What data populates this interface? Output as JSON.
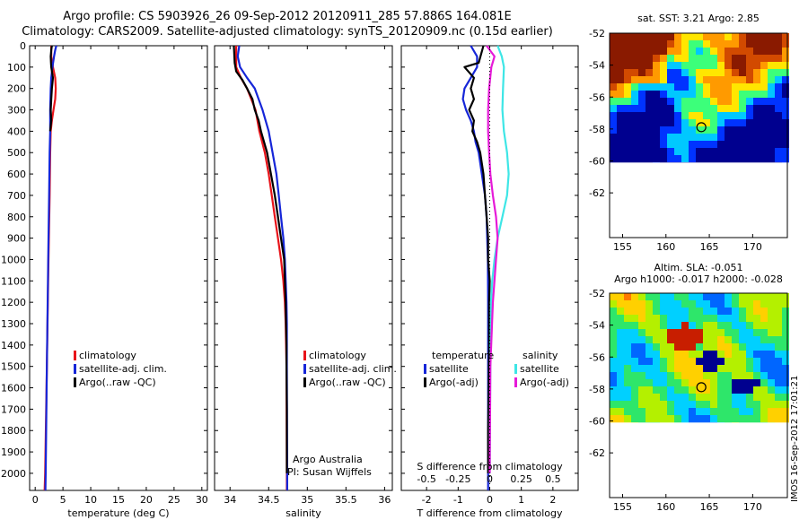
{
  "header": {
    "line1": "Argo profile: CS 5903926_26 09-Sep-2012 20120911_285 57.886S 164.081E",
    "line2": "Climatology: CARS2009. Satellite-adjusted climatology: synTS_20120909.nc (0.15d earlier)"
  },
  "colors": {
    "climatology": "#e8141a",
    "satellite": "#1626d8",
    "argo": "#000000",
    "satellite_salinity": "#3ee6e6",
    "argo_salinity_diff": "#e61ad8"
  },
  "panels": {
    "temperature": {
      "xlabel": "temperature (deg C)"
    },
    "salinity": {
      "xlabel": "salinity",
      "note1": "Argo Australia",
      "note2": "PI: Susan Wijffels"
    },
    "difference": {
      "xlabel": "T difference from climatology",
      "top_label": "S difference from climatology"
    }
  },
  "legend": {
    "climatology": "climatology",
    "satellite_adj": "satellite-adj. clim.",
    "argo_raw": "Argo(..raw -QC)",
    "temperature_head": "temperature",
    "salinity_head": "salinity",
    "satellite": "satellite",
    "argo_adj": "Argo(-adj)"
  },
  "maps": {
    "sst_title": "sat. SST: 3.21  Argo: 2.85",
    "sla_title1": "Altim. SLA: -0.051",
    "sla_title2": "Argo h1000: -0.017 h2000: -0.028",
    "lat_ticks": [
      "-52",
      "-54",
      "-56",
      "-58",
      "-60",
      "-62"
    ],
    "lon_ticks": [
      "155",
      "160",
      "165",
      "170"
    ],
    "float_lon": 164.081,
    "float_lat": -57.886
  },
  "stamp": "IMOS 16-Sep-2012 17:01:21",
  "chart_data": [
    {
      "type": "line",
      "panel": "temperature",
      "xlabel": "temperature (deg C)",
      "ylim": [
        2080,
        0
      ],
      "xlim": [
        -1,
        31
      ],
      "x_ticks": [
        0,
        5,
        10,
        15,
        20,
        25,
        30
      ],
      "y_ticks": [
        0,
        100,
        200,
        300,
        400,
        500,
        600,
        700,
        800,
        900,
        1000,
        1100,
        1200,
        1300,
        1400,
        1500,
        1600,
        1700,
        1800,
        1900,
        2000
      ],
      "series": [
        {
          "name": "climatology",
          "depth": [
            0,
            50,
            100,
            150,
            200,
            250,
            300,
            350,
            400,
            500,
            700,
            1000,
            1500,
            2000,
            2080
          ],
          "values": [
            2.9,
            2.9,
            3.2,
            3.6,
            3.7,
            3.6,
            3.3,
            3.0,
            2.8,
            2.7,
            2.6,
            2.4,
            2.1,
            1.8,
            1.7
          ]
        },
        {
          "name": "satellite-adj. clim.",
          "depth": [
            0,
            20,
            50,
            100,
            150,
            200,
            300,
            400,
            500,
            700,
            1000,
            1500,
            2000,
            2080
          ],
          "values": [
            3.8,
            3.6,
            3.4,
            3.1,
            2.9,
            2.8,
            2.7,
            2.7,
            2.6,
            2.5,
            2.35,
            2.1,
            1.9,
            1.85
          ]
        },
        {
          "name": "Argo(..raw -QC)",
          "depth": [
            0,
            20,
            50,
            80,
            100,
            150,
            200,
            250,
            300,
            350,
            400
          ],
          "values": [
            3.0,
            2.9,
            2.8,
            2.85,
            2.9,
            3.2,
            3.0,
            2.9,
            2.8,
            2.9,
            2.7
          ]
        }
      ]
    },
    {
      "type": "line",
      "panel": "salinity",
      "xlabel": "salinity",
      "ylim": [
        2080,
        0
      ],
      "xlim": [
        33.8,
        36.1
      ],
      "x_ticks": [
        34,
        34.5,
        35,
        35.5,
        36
      ],
      "series": [
        {
          "name": "climatology",
          "depth": [
            0,
            100,
            150,
            200,
            300,
            400,
            500,
            600,
            700,
            800,
            900,
            1000,
            1100,
            1200,
            1300,
            1500,
            2000,
            2080
          ],
          "values": [
            34.08,
            34.08,
            34.14,
            34.22,
            34.33,
            34.38,
            34.45,
            34.5,
            34.54,
            34.58,
            34.62,
            34.66,
            34.69,
            34.71,
            34.72,
            34.73,
            34.735,
            34.735
          ]
        },
        {
          "name": "satellite-adj. clim.",
          "depth": [
            0,
            50,
            100,
            150,
            200,
            300,
            400,
            500,
            600,
            700,
            800,
            900,
            1000,
            1100,
            1200,
            1300,
            1500,
            2000,
            2080
          ],
          "values": [
            34.12,
            34.1,
            34.13,
            34.22,
            34.32,
            34.42,
            34.5,
            34.55,
            34.6,
            34.63,
            34.66,
            34.69,
            34.71,
            34.72,
            34.73,
            34.735,
            34.735,
            34.74,
            34.74
          ]
        },
        {
          "name": "Argo(..raw -QC)",
          "depth": [
            0,
            80,
            120,
            160,
            200,
            250,
            300,
            350,
            400,
            450,
            500,
            600,
            700,
            800,
            900,
            1000,
            1100,
            1200,
            1300,
            1400,
            1500,
            1700,
            1900,
            2000
          ],
          "values": [
            34.05,
            34.06,
            34.08,
            34.16,
            34.22,
            34.29,
            34.32,
            34.37,
            34.4,
            34.44,
            34.48,
            34.53,
            34.58,
            34.62,
            34.66,
            34.7,
            34.71,
            34.72,
            34.725,
            34.73,
            34.73,
            34.735,
            34.735,
            34.735
          ]
        }
      ]
    },
    {
      "type": "line",
      "panel": "difference",
      "xlabel": "T difference from climatology",
      "x2label": "S difference from climatology",
      "ylim": [
        2080,
        0
      ],
      "xlim": [
        -2.8,
        2.8
      ],
      "x_ticks": [
        -2,
        -1,
        0,
        1,
        2
      ],
      "x2_ticks": [
        "-0.5",
        "-0.25",
        "0",
        "0.25",
        "0.5"
      ],
      "series": [
        {
          "name": "temperature satellite",
          "depth": [
            0,
            50,
            100,
            150,
            200,
            250,
            300,
            350,
            400,
            450,
            500,
            600,
            700,
            800,
            900,
            1000,
            1200,
            1500,
            2000,
            2080
          ],
          "values": [
            -0.6,
            -0.4,
            -0.4,
            -0.6,
            -0.8,
            -0.85,
            -0.75,
            -0.6,
            -0.5,
            -0.45,
            -0.35,
            -0.25,
            -0.15,
            -0.1,
            -0.08,
            -0.06,
            -0.05,
            -0.05,
            -0.05,
            -0.05
          ]
        },
        {
          "name": "temperature Argo(-adj)",
          "depth": [
            0,
            80,
            100,
            150,
            200,
            250,
            300,
            350,
            400,
            450,
            500,
            550,
            600,
            700,
            800,
            900,
            1000,
            1100,
            1200,
            1400,
            1600,
            1800,
            2000
          ],
          "values": [
            -0.2,
            -0.35,
            -0.8,
            -0.5,
            -0.6,
            -0.5,
            -0.65,
            -0.5,
            -0.55,
            -0.4,
            -0.3,
            -0.25,
            -0.2,
            -0.15,
            -0.1,
            -0.05,
            -0.05,
            0.0,
            -0.02,
            -0.02,
            -0.03,
            -0.05,
            -0.05
          ]
        },
        {
          "name": "salinity satellite",
          "depth": [
            0,
            50,
            100,
            200,
            300,
            400,
            500,
            600,
            700,
            800,
            900,
            1000,
            1100,
            1200,
            1500,
            2000
          ],
          "values": [
            0.25,
            0.38,
            0.45,
            0.42,
            0.4,
            0.45,
            0.55,
            0.6,
            0.55,
            0.4,
            0.25,
            0.15,
            0.08,
            0.04,
            0.02,
            0.0
          ]
        },
        {
          "name": "salinity Argo(-adj)",
          "depth": [
            0,
            50,
            100,
            200,
            300,
            400,
            500,
            600,
            700,
            800,
            900,
            1000,
            1200,
            1500,
            2000
          ],
          "values": [
            -0.1,
            0.15,
            0.05,
            -0.02,
            -0.05,
            -0.05,
            -0.02,
            0.02,
            0.1,
            0.2,
            0.25,
            0.2,
            0.1,
            0.02,
            0.0
          ]
        }
      ]
    }
  ]
}
